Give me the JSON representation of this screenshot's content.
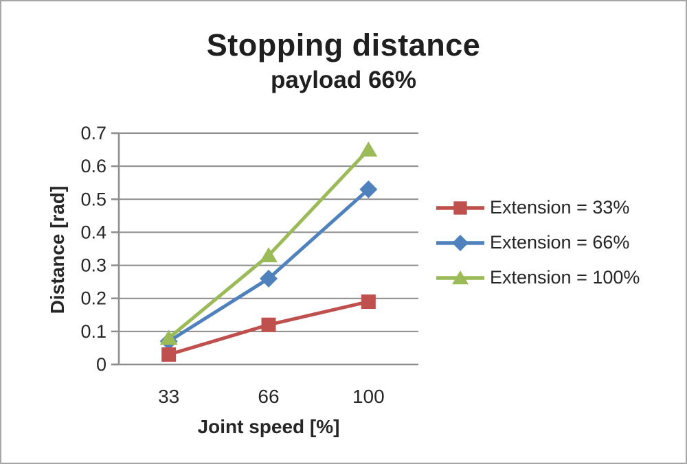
{
  "chart_data": {
    "type": "line",
    "title": "Stopping distance",
    "subtitle": "payload 66%",
    "xlabel": "Joint speed [%]",
    "ylabel": "Distance [rad]",
    "categories": [
      "33",
      "66",
      "100"
    ],
    "yticks": [
      "0",
      "0.1",
      "0.2",
      "0.3",
      "0.4",
      "0.5",
      "0.6",
      "0.7"
    ],
    "ylim": [
      0,
      0.7
    ],
    "grid": "horizontal",
    "legend_position": "right",
    "series": [
      {
        "name": "Extension = 33%",
        "marker": "square",
        "color": "#c0504d",
        "values": [
          0.03,
          0.12,
          0.19
        ]
      },
      {
        "name": "Extension = 66%",
        "marker": "diamond",
        "color": "#4f81bd",
        "values": [
          0.07,
          0.26,
          0.53
        ]
      },
      {
        "name": "Extension = 100%",
        "marker": "triangle",
        "color": "#9bbb59",
        "values": [
          0.08,
          0.33,
          0.65
        ]
      }
    ],
    "colors": {
      "axis": "#8c8c8c",
      "gridline": "#8c8c8c",
      "text": "#262626",
      "title_text": "#1f1f1f"
    }
  }
}
